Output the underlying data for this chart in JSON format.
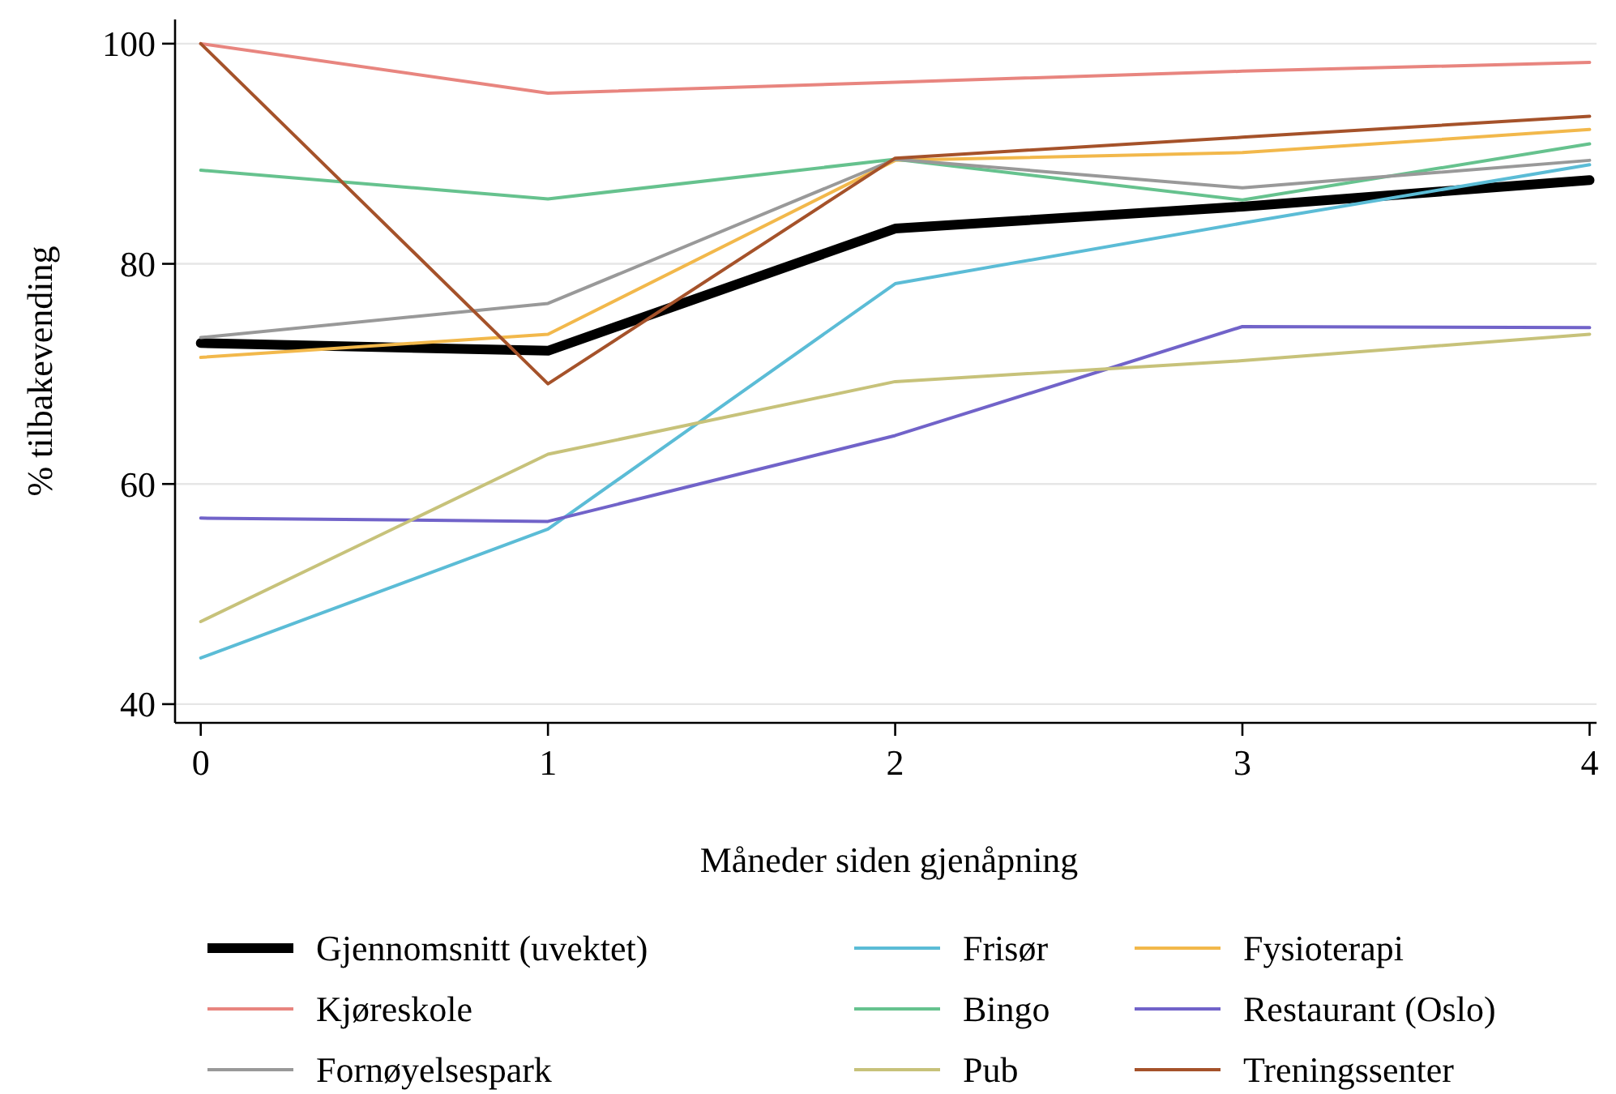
{
  "chart_data": {
    "type": "line",
    "xlabel": "Måneder siden gjenåpning",
    "ylabel": "% tilbakevending",
    "x": [
      0,
      1,
      2,
      3,
      4
    ],
    "xlim": [
      -0.074,
      4.02
    ],
    "xticks": [
      0,
      1,
      2,
      3,
      4
    ],
    "ylim": [
      38.3,
      102.2
    ],
    "yticks": [
      40,
      60,
      80,
      100
    ],
    "grid": "y",
    "legend": "bottom",
    "line_style": "solid",
    "marker": "none",
    "series": [
      {
        "name": "Gjennomsnitt (uvektet)",
        "color": "#000000",
        "values": [
          72.8,
          72.1,
          83.2,
          85.2,
          87.6
        ]
      },
      {
        "name": "Frisør",
        "color": "#5bbcd6",
        "values": [
          44.2,
          55.9,
          78.2,
          83.7,
          89.0
        ]
      },
      {
        "name": "Fysioterapi",
        "color": "#f2b84b",
        "values": [
          71.5,
          73.6,
          89.4,
          90.1,
          92.2
        ]
      },
      {
        "name": "Kjøreskole",
        "color": "#e8857f",
        "values": [
          100,
          95.5,
          96.5,
          97.5,
          98.3
        ]
      },
      {
        "name": "Bingo",
        "color": "#66c28e",
        "values": [
          88.5,
          85.9,
          89.5,
          85.8,
          90.9
        ]
      },
      {
        "name": "Restaurant (Oslo)",
        "color": "#7163c9",
        "values": [
          56.9,
          56.6,
          64.4,
          74.3,
          74.2
        ]
      },
      {
        "name": "Fornøyelsespark",
        "color": "#999999",
        "values": [
          73.3,
          76.4,
          89.5,
          86.9,
          89.4
        ]
      },
      {
        "name": "Pub",
        "color": "#c7c27a",
        "values": [
          47.5,
          62.7,
          69.3,
          71.2,
          73.6
        ]
      },
      {
        "name": "Treningssenter",
        "color": "#a5522a",
        "values": [
          100,
          69.1,
          89.6,
          91.5,
          93.4
        ]
      }
    ]
  }
}
